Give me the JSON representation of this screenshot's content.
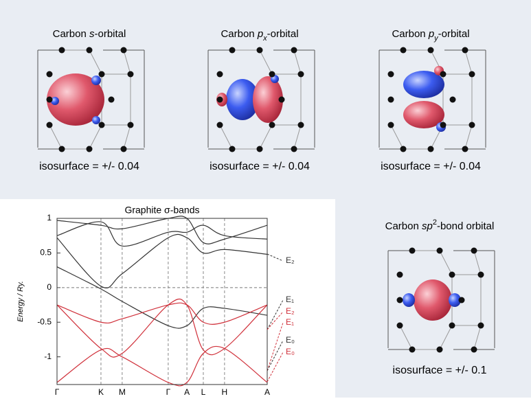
{
  "panels": [
    {
      "title": [
        "Carbon ",
        "s",
        "-orbital"
      ],
      "caption": "isosurface = +/- 0.04"
    },
    {
      "title": [
        "Carbon ",
        "p",
        "x",
        "-orbital"
      ],
      "caption": "isosurface = +/- 0.04"
    },
    {
      "title": [
        "Carbon ",
        "p",
        "y",
        "-orbital"
      ],
      "caption": "isosurface = +/- 0.04"
    },
    {
      "title": [
        "Carbon ",
        "sp",
        "2",
        "-bond orbital"
      ],
      "caption": "isosurface = +/- 0.1"
    }
  ],
  "chart_data": {
    "type": "line",
    "title": "Graphite σ-bands",
    "y_label": "Energy / Ry.",
    "x": [
      0,
      0.209,
      0.31,
      0.529,
      0.618,
      0.696,
      0.797,
      1
    ],
    "xlim": [
      0,
      1
    ],
    "xticks": [
      {
        "value": 0,
        "label": "Γ"
      },
      {
        "value": 0.209,
        "label": "K"
      },
      {
        "value": 0.31,
        "label": "M"
      },
      {
        "value": 0.529,
        "label": "Γ"
      },
      {
        "value": 0.618,
        "label": "A"
      },
      {
        "value": 0.696,
        "label": "L"
      },
      {
        "value": 0.797,
        "label": "H"
      },
      {
        "value": 1,
        "label": "A"
      }
    ],
    "ylim": [
      -1.4,
      1
    ],
    "yticks": [
      -1,
      -0.5,
      0,
      0.5,
      1
    ],
    "series": [
      {
        "color": "#333333",
        "values": [
          0.72,
          0.02,
          0.2,
          0.72,
          0.72,
          0.5,
          0.55,
          0.48
        ]
      },
      {
        "color": "#333333",
        "values": [
          0.3,
          -0.02,
          -0.2,
          -0.55,
          -0.55,
          -0.3,
          -0.3,
          -0.4
        ]
      },
      {
        "color": "#333333",
        "values": [
          0.75,
          0.95,
          0.6,
          0.8,
          0.8,
          0.9,
          0.75,
          0.7
        ]
      },
      {
        "color": "#333333",
        "values": [
          0.97,
          0.9,
          0.85,
          1.0,
          1.0,
          0.65,
          0.7,
          0.9
        ]
      },
      {
        "color": "#d0303a",
        "values": [
          -0.25,
          -0.5,
          -0.45,
          -0.25,
          -0.25,
          -0.5,
          -0.5,
          -0.25
        ]
      },
      {
        "color": "#d0303a",
        "values": [
          -0.25,
          -0.88,
          -0.95,
          -0.25,
          -0.25,
          -0.9,
          -0.88,
          -0.25
        ]
      },
      {
        "color": "#d0303a",
        "values": [
          -1.37,
          -0.9,
          -1.0,
          -1.37,
          -1.37,
          -0.95,
          -0.88,
          -1.37
        ]
      }
    ],
    "annotations": [
      {
        "text": "E₂",
        "color": "#333333"
      },
      {
        "text": "E₁",
        "color": "#333333"
      },
      {
        "text": "E₂",
        "color": "#d0303a"
      },
      {
        "text": "E₁",
        "color": "#d0303a"
      },
      {
        "text": "E₀",
        "color": "#333333"
      },
      {
        "text": "E₀",
        "color": "#d0303a"
      }
    ]
  }
}
